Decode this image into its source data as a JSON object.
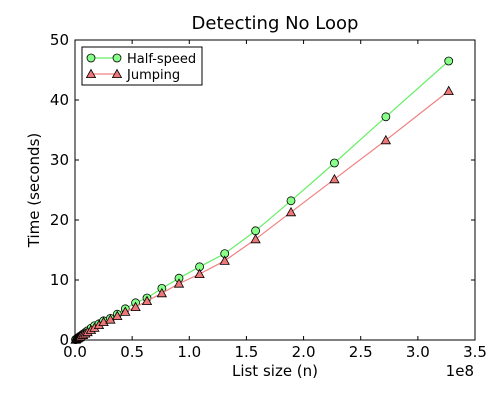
{
  "chart_data": {
    "type": "line",
    "title": "Detecting No Loop",
    "xlabel": "List size (n)",
    "ylabel": "Time (seconds)",
    "x_scale_label": "1e8",
    "xlim": [
      0,
      3.5
    ],
    "ylim": [
      0,
      50
    ],
    "x_ticks": [
      "0.0",
      "0.5",
      "1.0",
      "1.5",
      "2.0",
      "2.5",
      "3.0",
      "3.5"
    ],
    "y_ticks": [
      "0",
      "10",
      "20",
      "30",
      "40",
      "50"
    ],
    "legend_position": "top-left",
    "x": [
      0.005,
      0.01,
      0.02,
      0.03,
      0.04,
      0.05,
      0.07,
      0.09,
      0.11,
      0.14,
      0.17,
      0.21,
      0.25,
      0.31,
      0.37,
      0.44,
      0.53,
      0.63,
      0.76,
      0.91,
      1.09,
      1.31,
      1.58,
      1.89,
      2.27,
      2.72,
      3.27
    ],
    "series": [
      {
        "name": "Half-speed",
        "color": "#88ff88",
        "line_color": "#66ee66",
        "marker": "circle",
        "values": [
          0.07,
          0.14,
          0.28,
          0.42,
          0.56,
          0.7,
          0.98,
          1.26,
          1.54,
          1.96,
          2.38,
          2.7,
          3.2,
          3.6,
          4.3,
          5.2,
          6.2,
          7.0,
          8.6,
          10.3,
          12.2,
          14.4,
          18.2,
          23.2,
          29.5,
          37.2,
          46.5
        ]
      },
      {
        "name": "Jumping",
        "color": "#ee7777",
        "line_color": "#f08080",
        "marker": "triangle",
        "values": [
          0.06,
          0.12,
          0.24,
          0.36,
          0.48,
          0.6,
          0.84,
          1.08,
          1.32,
          1.68,
          2.04,
          2.5,
          3.0,
          3.4,
          4.0,
          4.7,
          5.5,
          6.5,
          7.8,
          9.4,
          11.0,
          13.2,
          16.8,
          21.3,
          26.8,
          33.3,
          41.5
        ]
      }
    ]
  }
}
